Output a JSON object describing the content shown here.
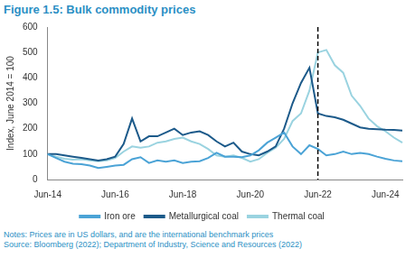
{
  "chart_data": {
    "type": "line",
    "title": "Figure 1.5: Bulk commodity prices",
    "y_label": "Index, June 2014 = 100",
    "notes": "Notes: Prices are in US dollars, and are the international benchmark prices",
    "source": "Source: Bloomberg (2022); Department of Industry, Science and Resources (2022)",
    "categories": [
      "Jun-14",
      null,
      null,
      null,
      null,
      null,
      null,
      null,
      "Jun-16",
      null,
      null,
      null,
      null,
      null,
      null,
      null,
      "Jun-18",
      null,
      null,
      null,
      null,
      null,
      null,
      null,
      "Jun-20",
      null,
      null,
      null,
      null,
      null,
      null,
      null,
      "Jun-22",
      null,
      null,
      null,
      null,
      null,
      null,
      null,
      "Jun-24",
      null,
      null
    ],
    "series": [
      {
        "name": "Iron ore",
        "color": "#4ba3d6",
        "values": [
          100,
          85,
          70,
          62,
          60,
          55,
          45,
          50,
          55,
          58,
          80,
          88,
          65,
          75,
          70,
          75,
          65,
          70,
          72,
          85,
          105,
          90,
          90,
          88,
          95,
          115,
          145,
          165,
          185,
          130,
          100,
          135,
          120,
          95,
          100,
          110,
          100,
          105,
          100,
          90,
          82,
          75,
          72
        ]
      },
      {
        "name": "Metallurgical coal",
        "color": "#1c5a8a",
        "values": [
          100,
          100,
          95,
          90,
          85,
          80,
          75,
          80,
          90,
          140,
          240,
          150,
          170,
          170,
          185,
          200,
          175,
          185,
          190,
          175,
          150,
          130,
          145,
          110,
          100,
          95,
          110,
          130,
          200,
          300,
          380,
          440,
          260,
          250,
          245,
          235,
          220,
          205,
          200,
          198,
          196,
          195,
          193
        ]
      },
      {
        "name": "Thermal coal",
        "color": "#9ad3e0",
        "values": [
          100,
          90,
          82,
          78,
          80,
          75,
          72,
          75,
          85,
          110,
          130,
          125,
          130,
          145,
          150,
          160,
          165,
          150,
          140,
          120,
          95,
          90,
          95,
          85,
          70,
          80,
          105,
          125,
          160,
          230,
          260,
          350,
          500,
          510,
          450,
          420,
          330,
          290,
          240,
          210,
          190,
          165,
          145
        ]
      }
    ],
    "annotations": [
      {
        "type": "vline",
        "x": "Jun-22",
        "line_style": "dashed"
      }
    ],
    "ylim": [
      0,
      600
    ],
    "yticks": [
      0,
      100,
      200,
      300,
      400,
      500,
      600
    ],
    "grid": false,
    "legend": "bottom"
  }
}
